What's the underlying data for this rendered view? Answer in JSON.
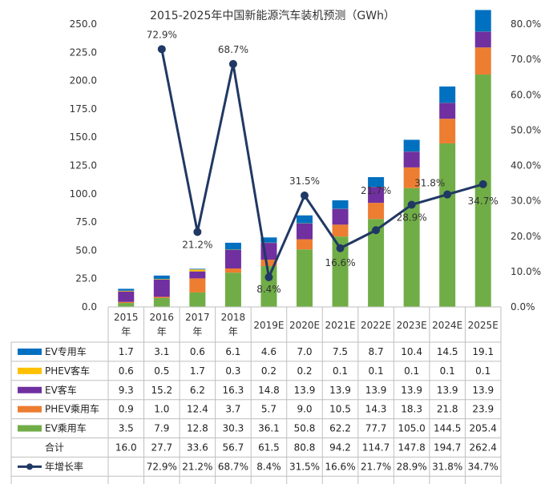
{
  "chart_data": {
    "type": "bar",
    "stacked": true,
    "title": "2015-2025年中国新能源汽车装机预测（GWh）",
    "categories": [
      [
        "2015",
        "年"
      ],
      [
        "2016",
        "年"
      ],
      [
        "2017",
        "年"
      ],
      [
        "2018",
        "年"
      ],
      [
        "2019E"
      ],
      [
        "2020E"
      ],
      [
        "2021E"
      ],
      [
        "2022E"
      ],
      [
        "2023E"
      ],
      [
        "2024E"
      ],
      [
        "2025E"
      ]
    ],
    "ylim": [
      0,
      250
    ],
    "yticks": [
      "0.0",
      "25.0",
      "50.0",
      "75.0",
      "100.0",
      "125.0",
      "150.0",
      "175.0",
      "200.0",
      "225.0",
      "250.0"
    ],
    "y2lim": [
      0,
      80
    ],
    "y2ticks": [
      "0.0%",
      "10.0%",
      "20.0%",
      "30.0%",
      "40.0%",
      "50.0%",
      "60.0%",
      "70.0%",
      "80.0%"
    ],
    "series": [
      {
        "name": "EV乘用车",
        "color": "#70ad47",
        "values": [
          3.5,
          7.9,
          12.8,
          30.3,
          36.1,
          50.8,
          62.2,
          77.7,
          105.0,
          144.5,
          205.4
        ],
        "labels": [
          "3.5",
          "7.9",
          "12.8",
          "30.3",
          "36.1",
          "50.8",
          "62.2",
          "77.7",
          "105.0",
          "144.5",
          "205.4"
        ]
      },
      {
        "name": "PHEV乘用车",
        "color": "#ed7d31",
        "values": [
          0.9,
          1.0,
          12.4,
          3.7,
          5.7,
          9.0,
          10.5,
          14.3,
          18.3,
          21.8,
          23.9
        ],
        "labels": [
          "0.9",
          "1.0",
          "12.4",
          "3.7",
          "5.7",
          "9.0",
          "10.5",
          "14.3",
          "18.3",
          "21.8",
          "23.9"
        ]
      },
      {
        "name": "EV客车",
        "color": "#7030a0",
        "values": [
          9.3,
          15.2,
          6.2,
          16.3,
          14.8,
          13.9,
          13.9,
          13.9,
          13.9,
          13.9,
          13.9
        ],
        "labels": [
          "9.3",
          "15.2",
          "6.2",
          "16.3",
          "14.8",
          "13.9",
          "13.9",
          "13.9",
          "13.9",
          "13.9",
          "13.9"
        ]
      },
      {
        "name": "PHEV客车",
        "color": "#ffc000",
        "values": [
          0.6,
          0.5,
          1.7,
          0.3,
          0.2,
          0.2,
          0.1,
          0.1,
          0.1,
          0.1,
          0.1
        ],
        "labels": [
          "0.6",
          "0.5",
          "1.7",
          "0.3",
          "0.2",
          "0.2",
          "0.1",
          "0.1",
          "0.1",
          "0.1",
          "0.1"
        ]
      },
      {
        "name": "EV专用车",
        "color": "#0070c0",
        "values": [
          1.7,
          3.1,
          0.6,
          6.1,
          4.6,
          7.0,
          7.5,
          8.7,
          10.4,
          14.5,
          19.1
        ],
        "labels": [
          "1.7",
          "3.1",
          "0.6",
          "6.1",
          "4.6",
          "7.0",
          "7.5",
          "8.7",
          "10.4",
          "14.5",
          "19.1"
        ]
      }
    ],
    "table_order": [
      "EV专用车",
      "PHEV客车",
      "EV客车",
      "PHEV乘用车",
      "EV乘用车"
    ],
    "total": {
      "name": "合计",
      "labels": [
        "16.0",
        "27.7",
        "33.6",
        "56.7",
        "61.5",
        "80.8",
        "94.2",
        "114.7",
        "147.8",
        "194.7",
        "262.4"
      ]
    },
    "growth": {
      "name": "年增长率",
      "color": "#203864",
      "values": [
        null,
        72.9,
        21.2,
        68.7,
        8.4,
        31.5,
        16.6,
        21.7,
        28.9,
        31.8,
        34.7
      ],
      "labels": [
        "",
        "72.9%",
        "21.2%",
        "68.7%",
        "8.4%",
        "31.5%",
        "16.6%",
        "21.7%",
        "28.9%",
        "31.8%",
        "34.7%"
      ]
    }
  }
}
